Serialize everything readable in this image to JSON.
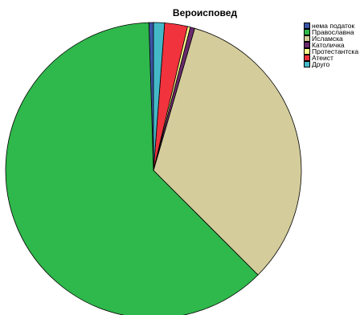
{
  "chart_data": {
    "type": "pie",
    "title": "Вероисповед",
    "categories": [
      "нема податок",
      "Православна",
      "Исламска",
      "Католичка",
      "Протестантска",
      "Атеист",
      "Друго"
    ],
    "values": [
      0.5,
      62.0,
      33.0,
      0.5,
      0.3,
      2.5,
      1.2
    ],
    "colors": [
      "#3b54a5",
      "#2fb84b",
      "#d4cc9b",
      "#6a2a6d",
      "#ffff8c",
      "#f0333d",
      "#45b8c8"
    ],
    "legend": "top-right"
  }
}
